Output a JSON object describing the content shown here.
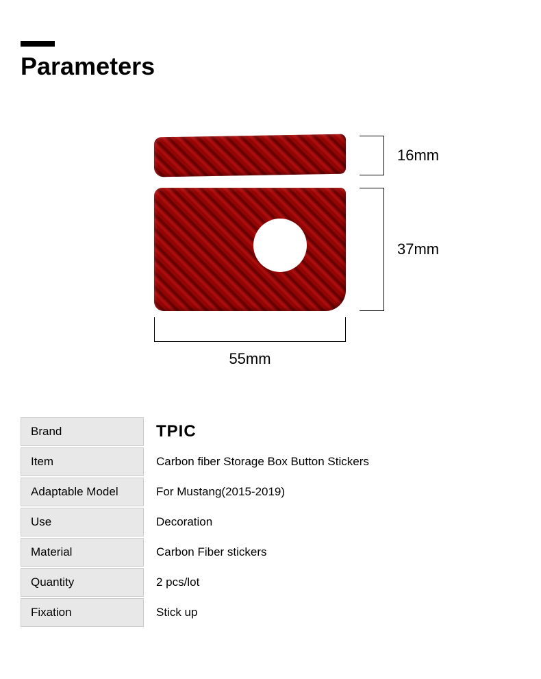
{
  "header": {
    "title": "Parameters"
  },
  "dimensions": {
    "height_top": "16mm",
    "height_bottom": "37mm",
    "width": "55mm"
  },
  "specs": {
    "rows": [
      {
        "label": "Brand",
        "value": "TPIC",
        "is_brand": true
      },
      {
        "label": "Item",
        "value": "Carbon fiber Storage Box Button Stickers"
      },
      {
        "label": "Adaptable Model",
        "value": "For Mustang(2015-2019)"
      },
      {
        "label": "Use",
        "value": "Decoration"
      },
      {
        "label": "Material",
        "value": "Carbon Fiber stickers"
      },
      {
        "label": "Quantity",
        "value": "2 pcs/lot"
      },
      {
        "label": "Fixation",
        "value": "Stick up"
      }
    ]
  },
  "colors": {
    "carbon_red_base": "#8b0000",
    "carbon_red_light": "#b01010",
    "carbon_red_dark": "#600000",
    "background": "#ffffff",
    "table_bg": "#e8e8e8",
    "table_border": "#cccccc",
    "text": "#000000"
  }
}
